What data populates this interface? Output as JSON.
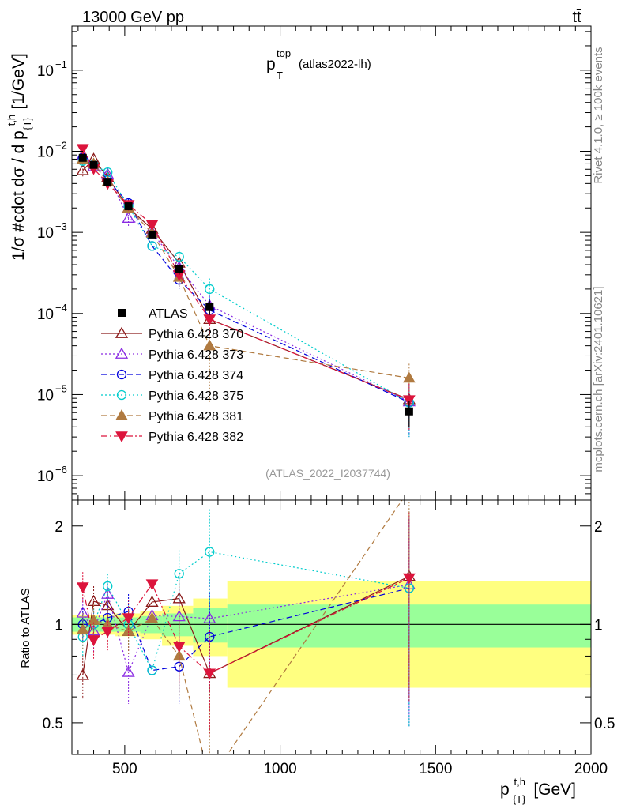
{
  "header": {
    "energy_label": "13000 GeV pp",
    "process_label": "tt̄",
    "title_main": "p",
    "title_sup": "top",
    "title_sub": "T",
    "title_tag": "(atlas2022-lh)",
    "analysis_id": "(ATLAS_2022_I2037744)",
    "side_rivet": "Rivet 4.1.0, ≥ 100k events",
    "side_mcplots": "mcplots.cern.ch [arXiv:2401.10621]"
  },
  "axes": {
    "main_ylabel": "1/σ #cdot dσ / d p",
    "main_ylabel_sup": "t,h",
    "main_ylabel_sub": "{T}",
    "main_ylabel_unit": "[1/GeV]",
    "ratio_ylabel": "Ratio to ATLAS",
    "xlabel": "p",
    "xlabel_sup": "t,h",
    "xlabel_sub": "{T}",
    "xlabel_unit": "[GeV]",
    "x_ticks": [
      "500",
      "1000",
      "1500",
      "2000"
    ],
    "y_ticks": [
      {
        "base": "10",
        "exp": "−1",
        "value": 0.1
      },
      {
        "base": "10",
        "exp": "−2",
        "value": 0.01
      },
      {
        "base": "10",
        "exp": "−3",
        "value": 0.001
      },
      {
        "base": "10",
        "exp": "−4",
        "value": 0.0001
      },
      {
        "base": "10",
        "exp": "−5",
        "value": 1e-05
      },
      {
        "base": "10",
        "exp": "−6",
        "value": 1e-06
      }
    ],
    "ratio_ticks": [
      "0.5",
      "1",
      "2"
    ]
  },
  "chart_data": {
    "type": "scatter",
    "title": "p_T^top (atlas2022-lh)",
    "xlabel": "p_{T}^{t,h} [GeV]",
    "ylabel": "1/σ dσ/dp_{T}^{t,h} [1/GeV]",
    "xlim": [
      330,
      2000
    ],
    "ylim": [
      5e-07,
      0.35
    ],
    "yscale": "log",
    "ratio_ylim": [
      0.4,
      2.4
    ],
    "legend_position": "center-left",
    "bins": [
      [
        330,
        380
      ],
      [
        380,
        420
      ],
      [
        420,
        470
      ],
      [
        470,
        550
      ],
      [
        550,
        620
      ],
      [
        620,
        720
      ],
      [
        720,
        830
      ],
      [
        830,
        2000
      ]
    ],
    "x": [
      365,
      400,
      445,
      512,
      588,
      675,
      773,
      1415
    ],
    "series": [
      {
        "name": "ATLAS",
        "style": "data",
        "color": "#000000",
        "values": [
          0.0083,
          0.0068,
          0.0042,
          0.0021,
          0.00094,
          0.00035,
          0.00012,
          6.2e-06
        ],
        "band_inner": [
          0.05,
          0.05,
          0.05,
          0.05,
          0.06,
          0.08,
          0.12,
          0.15
        ],
        "band_outer": [
          0.07,
          0.07,
          0.07,
          0.08,
          0.1,
          0.14,
          0.2,
          0.36
        ]
      },
      {
        "name": "Pythia 6.428 370",
        "style": "solid",
        "marker": "triangle-open",
        "color": "#8b1a1a",
        "values": [
          0.0058,
          0.008,
          0.0048,
          0.002,
          0.0011,
          0.00042,
          8.5e-05,
          8.7e-06
        ],
        "err": [
          0.0009,
          0.0009,
          0.0005,
          0.0003,
          0.00015,
          8e-05,
          3e-05,
          5e-06
        ]
      },
      {
        "name": "Pythia 6.428 373",
        "style": "dotted",
        "marker": "triangle-open",
        "color": "#8a2be2",
        "values": [
          0.009,
          0.0065,
          0.0052,
          0.0015,
          0.001,
          0.00037,
          0.000125,
          8.2e-06
        ],
        "err": [
          0.001,
          0.0009,
          0.0005,
          0.0003,
          0.00015,
          8e-05,
          4e-05,
          5e-06
        ]
      },
      {
        "name": "Pythia 6.428 374",
        "style": "dashed",
        "marker": "circle-open",
        "color": "#0000dd",
        "values": [
          0.0083,
          0.0068,
          0.0044,
          0.0023,
          0.00068,
          0.00026,
          0.00011,
          8e-06
        ],
        "err": [
          0.001,
          0.0008,
          0.0005,
          0.0003,
          0.00012,
          6e-05,
          4e-05,
          5e-06
        ]
      },
      {
        "name": "Pythia 6.428 375",
        "style": "dotted",
        "marker": "circle-open",
        "color": "#00cccc",
        "values": [
          0.0076,
          0.0068,
          0.0055,
          0.0021,
          0.00068,
          0.0005,
          0.0002,
          8e-06
        ],
        "err": [
          0.001,
          0.0008,
          0.0005,
          0.0003,
          0.00012,
          9e-05,
          7e-05,
          5e-06
        ]
      },
      {
        "name": "Pythia 6.428 381",
        "style": "dashed",
        "marker": "triangle-filled",
        "color": "#b07a40",
        "values": [
          0.008,
          0.007,
          0.0042,
          0.002,
          0.00098,
          0.00028,
          4e-05,
          1.6e-05
        ],
        "err": [
          0.001,
          0.0008,
          0.0005,
          0.0003,
          0.00015,
          7e-05,
          4e-05,
          8e-06
        ]
      },
      {
        "name": "Pythia 6.428 382",
        "style": "dashdot",
        "marker": "triangle-down-filled",
        "color": "#dc143c",
        "values": [
          0.0108,
          0.0061,
          0.004,
          0.0022,
          0.00125,
          0.0003,
          8.5e-05,
          8.6e-06
        ],
        "err": [
          0.0012,
          0.0008,
          0.0005,
          0.0003,
          0.00015,
          7e-05,
          3e-05,
          5e-06
        ]
      }
    ]
  }
}
